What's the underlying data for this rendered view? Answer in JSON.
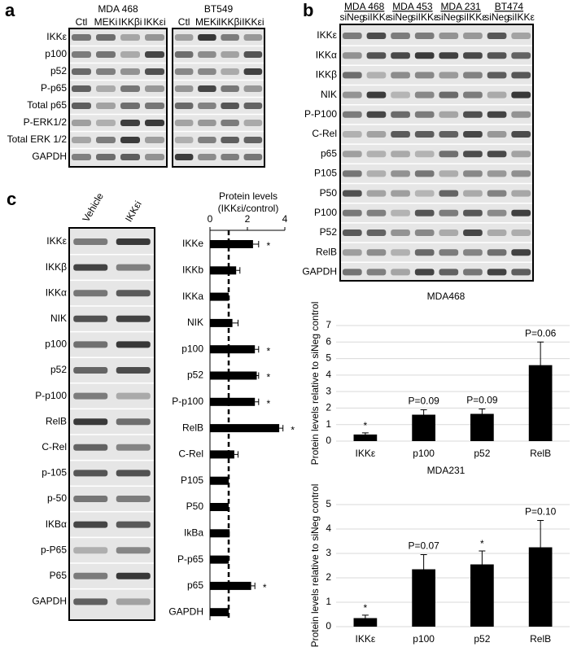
{
  "panels": {
    "a": {
      "label": "a",
      "groups": [
        {
          "name": "MDA 468",
          "lanes": [
            "Ctl",
            "MEKi",
            "IKKβi",
            "IKKεi"
          ]
        },
        {
          "name": "BT549",
          "lanes": [
            "Ctl",
            "MEKi",
            "IKKβi",
            "IKKεi"
          ]
        }
      ],
      "rows": [
        "IKKε",
        "p100",
        "p52",
        "P-p65",
        "Total p65",
        "P-ERK1/2",
        "Total ERK 1/2",
        "GAPDH"
      ]
    },
    "b": {
      "label": "b",
      "groups": [
        {
          "name": "MDA 468",
          "lanes": [
            "siNeg",
            "siIKKε"
          ]
        },
        {
          "name": "MDA 453",
          "lanes": [
            "siNeg",
            "siIKKε"
          ]
        },
        {
          "name": "MDA 231",
          "lanes": [
            "siNeg",
            "siIKKε"
          ]
        },
        {
          "name": "BT474",
          "lanes": [
            "siNeg",
            "siIKKε"
          ]
        }
      ],
      "rows": [
        "IKKε",
        "IKKα",
        "IKKβ",
        "NIK",
        "P-P100",
        "C-Rel",
        "p65",
        "P105",
        "P50",
        "P100",
        "P52",
        "RelB",
        "GAPDH"
      ]
    },
    "c": {
      "label": "c",
      "lanes": [
        "Vehicle",
        "IKKεi"
      ],
      "rows": [
        "IKKε",
        "IKKβ",
        "IKKα",
        "NIK",
        "p100",
        "p52",
        "P-p100",
        "RelB",
        "C-Rel",
        "p-105",
        "p-50",
        "IKBα",
        "p-P65",
        "P65",
        "GAPDH"
      ]
    }
  },
  "chart_data": [
    {
      "type": "hbar",
      "title": "Protein levels",
      "subtitle": "(IKKεi/control)",
      "categories": [
        "IKKe",
        "IKKb",
        "IKKa",
        "NIK",
        "p100",
        "p52",
        "P-p100",
        "RelB",
        "C-Rel",
        "P105",
        "P50",
        "IkBa",
        "P-p65",
        "p65",
        "GAPDH"
      ],
      "values": [
        2.3,
        1.4,
        1.0,
        1.2,
        2.4,
        2.5,
        2.4,
        3.7,
        1.3,
        1.0,
        1.0,
        1.05,
        1.0,
        2.2,
        1.0
      ],
      "errors": [
        0.3,
        0.2,
        0,
        0.3,
        0.2,
        0.1,
        0.2,
        0.2,
        0.2,
        0,
        0,
        0,
        0,
        0.2,
        0
      ],
      "significance": [
        "*",
        null,
        null,
        null,
        "*",
        "*",
        "*",
        "*",
        null,
        null,
        null,
        null,
        null,
        "*",
        null
      ],
      "reference": 1,
      "xlim": [
        0,
        4
      ],
      "xticks": [
        0,
        2,
        4
      ],
      "color": "#000000"
    },
    {
      "type": "bar",
      "title": "MDA468",
      "ylabel": "Protein levels relative to siNeg control",
      "categories": [
        "IKKε",
        "p100",
        "p52",
        "RelB"
      ],
      "values": [
        0.4,
        1.6,
        1.65,
        4.6
      ],
      "errors": [
        0.1,
        0.3,
        0.3,
        1.4
      ],
      "annotations": [
        "*",
        "P=0.09",
        "P=0.09",
        "P=0.06"
      ],
      "ylim": [
        0,
        7
      ],
      "yticks": [
        0,
        1,
        2,
        3,
        4,
        5,
        6,
        7
      ],
      "grid": true,
      "color": "#000000"
    },
    {
      "type": "bar",
      "title": "MDA231",
      "ylabel": "Protein levels relative to siNeg control",
      "categories": [
        "IKKε",
        "p100",
        "p52",
        "RelB"
      ],
      "values": [
        0.35,
        2.35,
        2.55,
        3.25
      ],
      "errors": [
        0.12,
        0.6,
        0.55,
        1.1
      ],
      "annotations": [
        "*",
        "P=0.07",
        "*",
        "P=0.10"
      ],
      "ylim": [
        0,
        5
      ],
      "yticks": [
        0,
        1,
        2,
        3,
        4,
        5
      ],
      "grid": true,
      "color": "#000000"
    }
  ]
}
